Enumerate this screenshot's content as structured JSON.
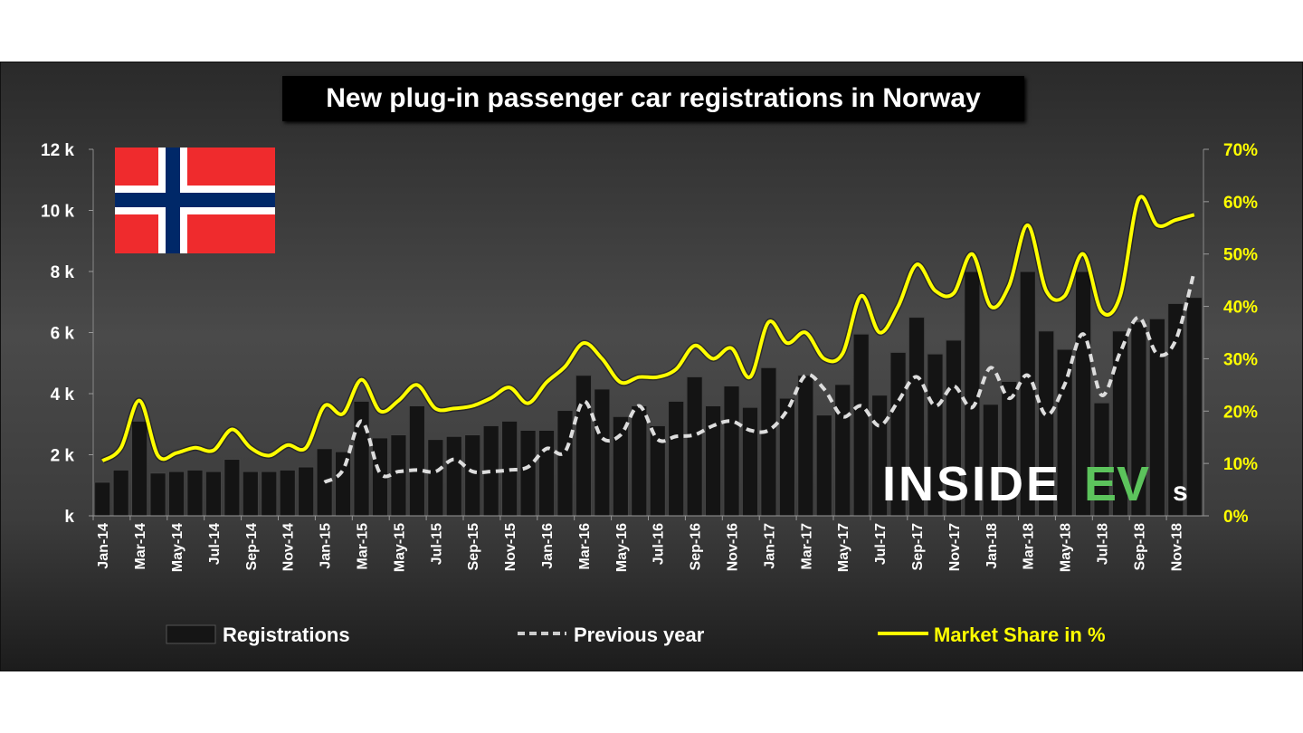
{
  "chart_data": {
    "type": "bar",
    "title": "New plug-in passenger car registrations in Norway",
    "categories": [
      "Jan-14",
      "Feb-14",
      "Mar-14",
      "Apr-14",
      "May-14",
      "Jun-14",
      "Jul-14",
      "Aug-14",
      "Sep-14",
      "Oct-14",
      "Nov-14",
      "Dec-14",
      "Jan-15",
      "Feb-15",
      "Mar-15",
      "Apr-15",
      "May-15",
      "Jun-15",
      "Jul-15",
      "Aug-15",
      "Sep-15",
      "Oct-15",
      "Nov-15",
      "Dec-15",
      "Jan-16",
      "Feb-16",
      "Mar-16",
      "Apr-16",
      "May-16",
      "Jun-16",
      "Jul-16",
      "Aug-16",
      "Sep-16",
      "Oct-16",
      "Nov-16",
      "Dec-16",
      "Jan-17",
      "Feb-17",
      "Mar-17",
      "Apr-17",
      "May-17",
      "Jun-17",
      "Jul-17",
      "Aug-17",
      "Sep-17",
      "Oct-17",
      "Nov-17",
      "Dec-17",
      "Jan-18",
      "Feb-18",
      "Mar-18",
      "Apr-18",
      "May-18",
      "Jun-18",
      "Jul-18",
      "Aug-18",
      "Sep-18",
      "Oct-18",
      "Nov-18",
      "Dec-18"
    ],
    "series": [
      {
        "name": "Registrations",
        "kind": "bar",
        "axis": "left",
        "values": [
          1100,
          1500,
          3100,
          1400,
          1450,
          1500,
          1450,
          1850,
          1450,
          1450,
          1500,
          1600,
          2200,
          2100,
          3750,
          2550,
          2650,
          3600,
          2500,
          2600,
          2650,
          2950,
          3100,
          2800,
          2800,
          3450,
          4600,
          4150,
          3250,
          3600,
          2950,
          3750,
          4550,
          3600,
          4250,
          3550,
          4850,
          3850,
          4600,
          3300,
          4300,
          5950,
          3950,
          5350,
          6500,
          5300,
          5750,
          8000,
          3650,
          4400,
          8000,
          6050,
          5450,
          8000,
          3700,
          6050,
          6350,
          6450,
          6950,
          7150
        ]
      },
      {
        "name": "Previous year",
        "kind": "dashed-line",
        "axis": "left",
        "values": [
          null,
          null,
          null,
          null,
          null,
          null,
          null,
          null,
          null,
          null,
          null,
          null,
          1100,
          1500,
          3100,
          1400,
          1450,
          1500,
          1450,
          1850,
          1450,
          1450,
          1500,
          1600,
          2200,
          2100,
          3750,
          2550,
          2650,
          3600,
          2500,
          2600,
          2650,
          2950,
          3100,
          2800,
          2800,
          3450,
          4600,
          4150,
          3250,
          3600,
          2950,
          3750,
          4550,
          3600,
          4250,
          3550,
          4850,
          3850,
          4600,
          3300,
          4300,
          5950,
          3950,
          5350,
          6500,
          5300,
          5750,
          8000
        ]
      },
      {
        "name": "Market Share in %",
        "kind": "line",
        "axis": "right",
        "values": [
          10.5,
          13,
          22,
          11.5,
          12,
          13,
          12.5,
          16.5,
          13,
          11.5,
          13.5,
          13,
          21,
          19.5,
          26,
          20,
          22,
          25,
          20.5,
          20.5,
          21,
          22.5,
          24.5,
          21.5,
          25.5,
          28.5,
          33,
          30,
          25.5,
          26.5,
          26.5,
          28,
          32.5,
          30,
          32,
          26.5,
          37,
          33,
          35,
          30,
          31,
          42,
          35,
          40,
          48,
          43,
          42.5,
          50,
          40,
          44,
          55.5,
          43,
          42,
          50,
          39,
          42,
          60.5,
          55.5,
          56.5,
          57.5
        ]
      }
    ],
    "ylim": [
      0,
      12000
    ],
    "yticks": [
      "k",
      "2 k",
      "4 k",
      "6 k",
      "8 k",
      "10 k",
      "12 k"
    ],
    "y2lim": [
      0,
      70
    ],
    "y2ticks": [
      "0%",
      "10%",
      "20%",
      "30%",
      "40%",
      "50%",
      "60%",
      "70%"
    ],
    "xtick_labels_every": 2,
    "legend": "bottom",
    "colors": {
      "bars": "#111111",
      "previous_year": "#cccccc",
      "market_share": "#ffff00",
      "axis_text": "#ffffff",
      "right_axis_text": "#ffff00"
    },
    "flag": "Norway",
    "watermark": "INSIDEEVs"
  },
  "legend": {
    "registrations": "Registrations",
    "previous_year": "Previous year",
    "market_share": "Market Share in %"
  },
  "logo": {
    "text_white": "INSIDE",
    "text_green": "EV",
    "text_small": "s"
  }
}
